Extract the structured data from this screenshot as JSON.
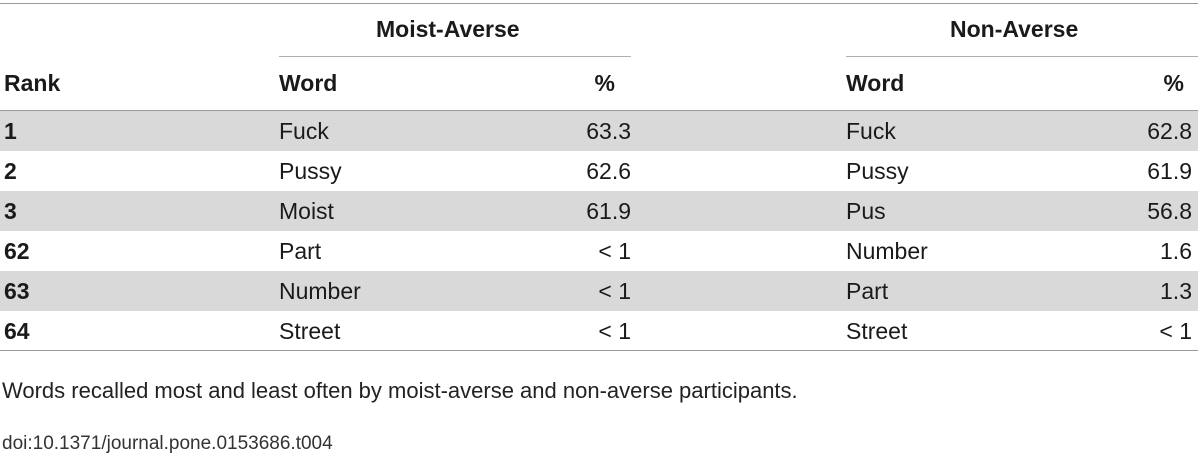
{
  "table": {
    "groups": [
      {
        "title": "Moist-Averse"
      },
      {
        "title": "Non-Averse"
      }
    ],
    "headers": {
      "rank": "Rank",
      "word1": "Word",
      "pct1": "%",
      "word2": "Word",
      "pct2": "%"
    },
    "rows": [
      {
        "rank": "1",
        "moist_word": "Fuck",
        "moist_pct": "63.3",
        "non_word": "Fuck",
        "non_pct": "62.8"
      },
      {
        "rank": "2",
        "moist_word": "Pussy",
        "moist_pct": "62.6",
        "non_word": "Pussy",
        "non_pct": "61.9"
      },
      {
        "rank": "3",
        "moist_word": "Moist",
        "moist_pct": "61.9",
        "non_word": "Pus",
        "non_pct": "56.8"
      },
      {
        "rank": "62",
        "moist_word": "Part",
        "moist_pct": "< 1",
        "non_word": "Number",
        "non_pct": "1.6"
      },
      {
        "rank": "63",
        "moist_word": "Number",
        "moist_pct": "< 1",
        "non_word": "Part",
        "non_pct": "1.3"
      },
      {
        "rank": "64",
        "moist_word": "Street",
        "moist_pct": "< 1",
        "non_word": "Street",
        "non_pct": "< 1"
      }
    ]
  },
  "caption": "Words recalled most and least often by moist-averse and non-averse participants.",
  "doi": "doi:10.1371/journal.pone.0153686.t004",
  "colors": {
    "row_shade": "#d9d9d9",
    "rule": "#9a9a9a"
  }
}
